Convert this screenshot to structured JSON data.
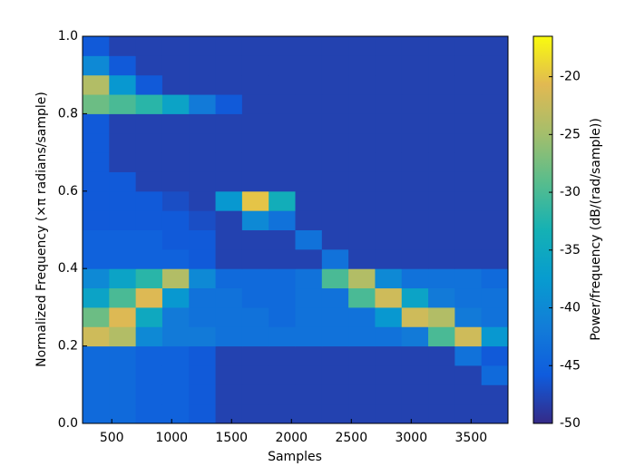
{
  "chart_data": {
    "type": "heatmap",
    "x_label": "Samples",
    "y_label": "Normalized Frequency  (×π radians/sample)",
    "colorbar_label": "Power/frequency (dB/(rad/sample))",
    "x": [
      367,
      589,
      811,
      1033,
      1255,
      1477,
      1699,
      1921,
      2143,
      2365,
      2587,
      2809,
      3031,
      3253,
      3475,
      3697
    ],
    "y": [
      0.025,
      0.075,
      0.125,
      0.175,
      0.225,
      0.275,
      0.325,
      0.375,
      0.425,
      0.475,
      0.525,
      0.575,
      0.625,
      0.675,
      0.725,
      0.775,
      0.825,
      0.875,
      0.925,
      0.975
    ],
    "values": [
      [
        -44,
        -44,
        -45,
        -45,
        -46,
        -48,
        -48,
        -48,
        -48,
        -48,
        -48,
        -48,
        -48,
        -48,
        -48,
        -48
      ],
      [
        -44,
        -44,
        -45,
        -45,
        -46,
        -48,
        -48,
        -48,
        -48,
        -48,
        -48,
        -48,
        -48,
        -48,
        -48,
        -48
      ],
      [
        -44,
        -44,
        -45,
        -45,
        -46,
        -48,
        -48,
        -48,
        -48,
        -48,
        -48,
        -48,
        -48,
        -48,
        -48,
        -44
      ],
      [
        -44,
        -44,
        -45,
        -45,
        -46,
        -48,
        -48,
        -48,
        -48,
        -48,
        -48,
        -48,
        -48,
        -48,
        -43,
        -46
      ],
      [
        -22,
        -24,
        -40,
        -42,
        -42,
        -43,
        -43,
        -43,
        -43,
        -43,
        -43,
        -43,
        -42,
        -30,
        -22,
        -38
      ],
      [
        -28,
        -21,
        -35,
        -42,
        -43,
        -43,
        -43,
        -44,
        -43,
        -43,
        -43,
        -38,
        -22,
        -24,
        -42,
        -43
      ],
      [
        -36,
        -30,
        -21,
        -38,
        -43,
        -43,
        -44,
        -44,
        -43,
        -43,
        -30,
        -22,
        -36,
        -42,
        -43,
        -43
      ],
      [
        -40,
        -36,
        -32,
        -24,
        -40,
        -44,
        -44,
        -44,
        -43,
        -30,
        -24,
        -40,
        -43,
        -43,
        -43,
        -44
      ],
      [
        -45,
        -45,
        -45,
        -45,
        -46,
        -48,
        -48,
        -48,
        -48,
        -43,
        -48,
        -48,
        -48,
        -48,
        -48,
        -48
      ],
      [
        -45,
        -45,
        -45,
        -46,
        -46,
        -48,
        -48,
        -48,
        -43,
        -48,
        -48,
        -48,
        -48,
        -48,
        -48,
        -48
      ],
      [
        -46,
        -46,
        -46,
        -46,
        -47,
        -48,
        -40,
        -43,
        -48,
        -48,
        -48,
        -48,
        -48,
        -48,
        -48,
        -48
      ],
      [
        -46,
        -46,
        -46,
        -47,
        -48,
        -38,
        -20,
        -34,
        -48,
        -48,
        -48,
        -48,
        -48,
        -48,
        -48,
        -48
      ],
      [
        -46,
        -46,
        -48,
        -48,
        -48,
        -48,
        -48,
        -48,
        -48,
        -48,
        -48,
        -48,
        -48,
        -48,
        -48,
        -48
      ],
      [
        -46,
        -48,
        -48,
        -48,
        -48,
        -48,
        -48,
        -48,
        -48,
        -48,
        -48,
        -48,
        -48,
        -48,
        -48,
        -48
      ],
      [
        -46,
        -48,
        -48,
        -48,
        -48,
        -48,
        -48,
        -48,
        -48,
        -48,
        -48,
        -48,
        -48,
        -48,
        -48,
        -48
      ],
      [
        -46,
        -48,
        -48,
        -48,
        -48,
        -48,
        -48,
        -48,
        -48,
        -48,
        -48,
        -48,
        -48,
        -48,
        -48,
        -48
      ],
      [
        -28,
        -30,
        -32,
        -36,
        -42,
        -46,
        -48,
        -48,
        -48,
        -48,
        -48,
        -48,
        -48,
        -48,
        -48,
        -48
      ],
      [
        -24,
        -38,
        -46,
        -48,
        -48,
        -48,
        -48,
        -48,
        -48,
        -48,
        -48,
        -48,
        -48,
        -48,
        -48,
        -48
      ],
      [
        -40,
        -46,
        -48,
        -48,
        -48,
        -48,
        -48,
        -48,
        -48,
        -48,
        -48,
        -48,
        -48,
        -48,
        -48,
        -48
      ],
      [
        -46,
        -48,
        -48,
        -48,
        -48,
        -48,
        -48,
        -48,
        -48,
        -48,
        -48,
        -48,
        -48,
        -48,
        -48,
        -48
      ]
    ],
    "xlim": [
      256,
      3808
    ],
    "xticks": [
      500,
      1000,
      1500,
      2000,
      2500,
      3000,
      3500
    ],
    "ylim": [
      0,
      1
    ],
    "yticks": [
      {
        "value": 0,
        "label": "0.0"
      },
      0.2,
      0.4,
      0.6,
      0.8,
      {
        "value": 1,
        "label": "1.0"
      }
    ],
    "clim": [
      -50,
      -16.5
    ],
    "cticks": [
      -50,
      -45,
      -40,
      -35,
      -30,
      -25,
      -20
    ]
  }
}
